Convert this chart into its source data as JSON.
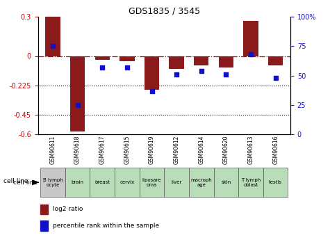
{
  "title": "GDS1835 / 3545",
  "samples": [
    "GSM90611",
    "GSM90618",
    "GSM90617",
    "GSM90615",
    "GSM90619",
    "GSM90612",
    "GSM90614",
    "GSM90620",
    "GSM90613",
    "GSM90616"
  ],
  "cell_lines": [
    "B lymph\nocyte",
    "brain",
    "breast",
    "cervix",
    "liposare\noma",
    "liver",
    "macroph\nage",
    "skin",
    "T lymph\noblast",
    "testis"
  ],
  "cell_line_colors": [
    "#c8c8c8",
    "#b8ddb8",
    "#b8ddb8",
    "#b8ddb8",
    "#b8ddb8",
    "#b8ddb8",
    "#b8ddb8",
    "#b8ddb8",
    "#b8ddb8",
    "#b8ddb8"
  ],
  "log2_ratio": [
    0.3,
    -0.58,
    -0.03,
    -0.04,
    -0.26,
    -0.1,
    -0.07,
    -0.09,
    0.27,
    -0.07
  ],
  "percentile_rank": [
    75,
    25,
    57,
    57,
    37,
    51,
    54,
    51,
    68,
    48
  ],
  "ylim_left": [
    -0.6,
    0.3
  ],
  "ylim_right": [
    0,
    100
  ],
  "yticks_left": [
    0.3,
    0,
    -0.225,
    -0.45,
    -0.6
  ],
  "yticks_right": [
    100,
    75,
    50,
    25,
    0
  ],
  "dotted_lines": [
    -0.225,
    -0.45
  ],
  "bar_color": "#8B1A1A",
  "dot_color": "#1111CC",
  "legend_label_bar": "log2 ratio",
  "legend_label_dot": "percentile rank within the sample",
  "cell_line_label": "cell line"
}
